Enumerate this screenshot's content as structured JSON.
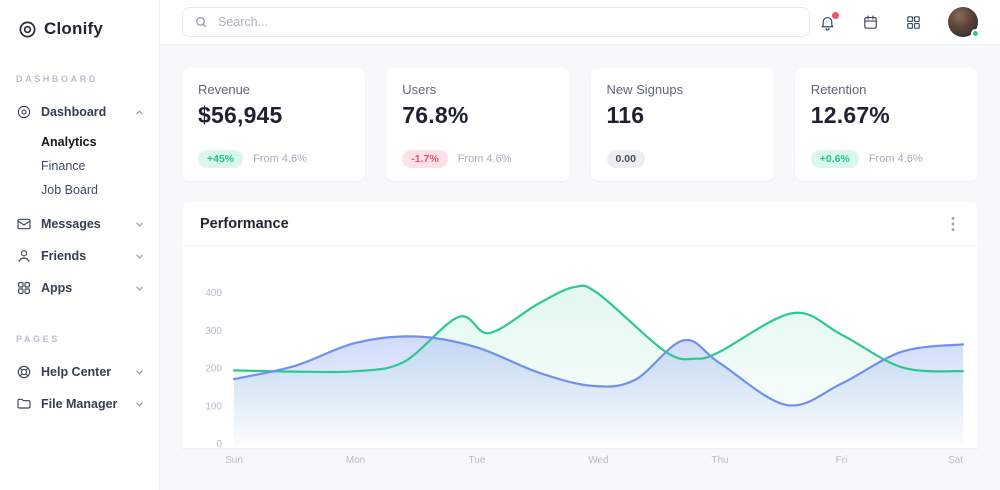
{
  "brand": {
    "name": "Clonify"
  },
  "sidebar": {
    "sections": [
      {
        "label": "DASHBOARD",
        "items": [
          {
            "label": "Dashboard",
            "icon": "disc-icon",
            "chevron": "up",
            "expanded": true,
            "children": [
              {
                "label": "Analytics",
                "active": true
              },
              {
                "label": "Finance",
                "active": false
              },
              {
                "label": "Job Board",
                "active": false
              }
            ]
          },
          {
            "label": "Messages",
            "icon": "mail-icon",
            "chevron": "down"
          },
          {
            "label": "Friends",
            "icon": "user-icon",
            "chevron": "down"
          },
          {
            "label": "Apps",
            "icon": "grid-icon",
            "chevron": "down"
          }
        ]
      },
      {
        "label": "PAGES",
        "items": [
          {
            "label": "Help Center",
            "icon": "lifebuoy-icon",
            "chevron": "down"
          },
          {
            "label": "File Manager",
            "icon": "folder-icon",
            "chevron": "down"
          }
        ]
      }
    ]
  },
  "topbar": {
    "search_placeholder": "Search...",
    "icons": [
      {
        "name": "bell-icon",
        "badge": true
      },
      {
        "name": "calendar-icon",
        "badge": false
      },
      {
        "name": "apps-icon",
        "badge": false
      }
    ],
    "avatar_status_color": "#2ecc8f",
    "notification_color": "#f4516c"
  },
  "stats": [
    {
      "label": "Revenue",
      "value": "$56,945",
      "badge": "+45%",
      "badge_type": "positive",
      "sub": "From 4.6%"
    },
    {
      "label": "Users",
      "value": "76.8%",
      "badge": "-1.7%",
      "badge_type": "negative",
      "sub": "From 4.6%"
    },
    {
      "label": "New Signups",
      "value": "116",
      "badge": "0.00",
      "badge_type": "neutral",
      "sub": ""
    },
    {
      "label": "Retention",
      "value": "12.67%",
      "badge": "+0.6%",
      "badge_type": "positive",
      "sub": "From 4.6%"
    }
  ],
  "chart_data": {
    "type": "area",
    "title": "Performance",
    "x_labels": [
      "Sun",
      "Mon",
      "Tue",
      "Wed",
      "Thu",
      "Fri",
      "Sat"
    ],
    "y_ticks": [
      0,
      100,
      200,
      300,
      400
    ],
    "ylim": [
      0,
      440
    ],
    "grid": false,
    "legend": "none",
    "series": [
      {
        "name": "series-green",
        "color": "#2dc98e",
        "fill_from": "rgba(45,201,142,0.14)",
        "fill_to": "rgba(45,201,142,0.01)",
        "points": [
          [
            0,
            195
          ],
          [
            0.5,
            192
          ],
          [
            1,
            193
          ],
          [
            1.4,
            218
          ],
          [
            1.85,
            337
          ],
          [
            2.1,
            294
          ],
          [
            2.5,
            371
          ],
          [
            2.8,
            416
          ],
          [
            3,
            398
          ],
          [
            3.55,
            245
          ],
          [
            3.8,
            226
          ],
          [
            4,
            245
          ],
          [
            4.6,
            347
          ],
          [
            5,
            290
          ],
          [
            5.5,
            203
          ],
          [
            6,
            193
          ]
        ]
      },
      {
        "name": "series-blue",
        "color": "#7090ef",
        "fill_from": "rgba(112,144,239,0.33)",
        "fill_to": "rgba(112,144,239,0.02)",
        "points": [
          [
            0,
            172
          ],
          [
            0.5,
            207
          ],
          [
            1,
            268
          ],
          [
            1.5,
            285
          ],
          [
            2,
            256
          ],
          [
            2.5,
            190
          ],
          [
            2.95,
            154
          ],
          [
            3.3,
            170
          ],
          [
            3.7,
            275
          ],
          [
            4,
            214
          ],
          [
            4.55,
            103
          ],
          [
            5,
            160
          ],
          [
            5.5,
            245
          ],
          [
            6,
            264
          ]
        ]
      }
    ]
  }
}
